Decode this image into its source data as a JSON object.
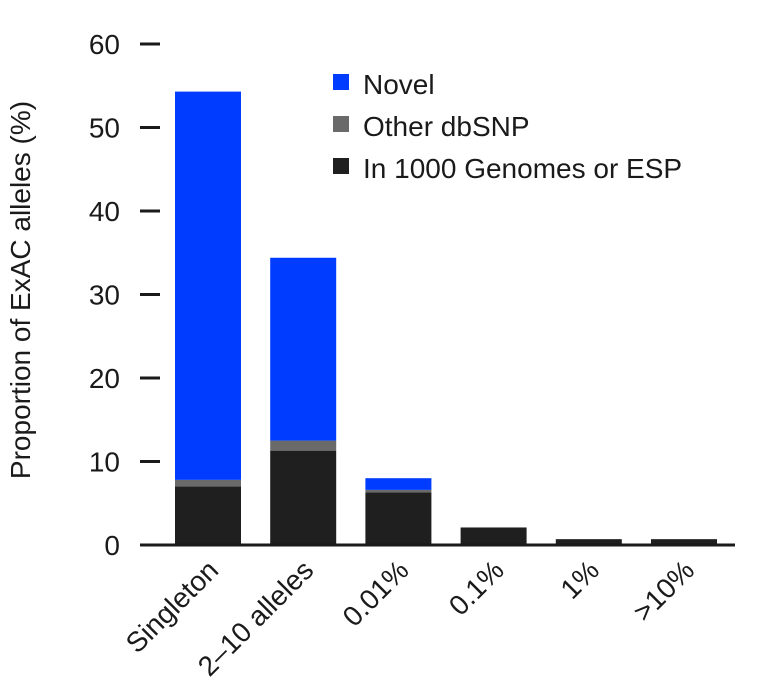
{
  "chart_data": {
    "type": "bar",
    "stacked": true,
    "title": "",
    "xlabel": "",
    "ylabel": "Proportion of ExAC alleles (%)",
    "ylim": [
      0,
      60
    ],
    "yticks": [
      0,
      10,
      20,
      30,
      40,
      50,
      60
    ],
    "grid": false,
    "legend_placement": "top-right",
    "categories": [
      "Singleton",
      "2–10 alleles",
      "0.01%",
      "0.1%",
      "1%",
      ">10%"
    ],
    "series": [
      {
        "name": "In 1000 Genomes or ESP",
        "color": "#1f1f1f",
        "values": [
          7.0,
          11.3,
          6.3,
          2.1,
          0.7,
          0.7
        ]
      },
      {
        "name": "Other dbSNP",
        "color": "#6a6a6a",
        "values": [
          0.8,
          1.2,
          0.3,
          0.0,
          0.0,
          0.0
        ]
      },
      {
        "name": "Novel",
        "color": "#003cff",
        "values": [
          46.5,
          21.9,
          1.4,
          0.0,
          0.0,
          0.0
        ]
      }
    ],
    "legend_order": [
      "Novel",
      "Other dbSNP",
      "In 1000 Genomes or ESP"
    ]
  }
}
